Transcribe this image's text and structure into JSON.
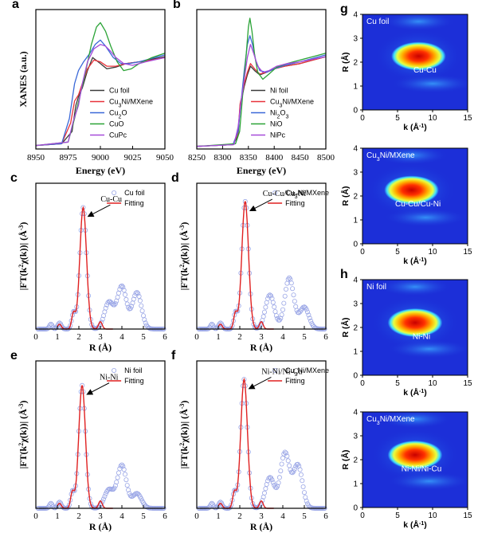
{
  "figure": {
    "panel_labels": [
      "a",
      "b",
      "c",
      "d",
      "e",
      "f",
      "g",
      "h"
    ],
    "colors": {
      "black": "#3a3a3a",
      "red": "#e8323a",
      "blue": "#3a68d8",
      "green": "#2aa336",
      "purple": "#a64bd9",
      "fit_red": "#e02020",
      "circle": "#9aa6e6",
      "wt_bg": "#1c2fd8"
    }
  },
  "chart_data": [
    {
      "id": "a",
      "type": "line",
      "panel": "a",
      "xlabel": "Energy (eV)",
      "ylabel": "XANES (a.u.)",
      "xlim": [
        8950,
        9050
      ],
      "ylim": [
        0,
        1.6
      ],
      "xticks": [
        "8950",
        "8975",
        "9000",
        "9025",
        "9050"
      ],
      "legend": [
        "Cu foil",
        "Cu3Ni/MXene",
        "Cu2O",
        "CuO",
        "CuPc"
      ],
      "legend_sub": [
        [
          "Cu foil"
        ],
        [
          "Cu",
          "3",
          "Ni/MXene"
        ],
        [
          "Cu",
          "2",
          "O"
        ],
        [
          "CuO"
        ],
        [
          "CuPc"
        ]
      ],
      "series": [
        {
          "name": "Cu foil",
          "color": "#3a3a3a",
          "x": [
            8950,
            8970,
            8978,
            8981,
            8983,
            8986,
            8990,
            8994,
            9000,
            9005,
            9012,
            9020,
            9030,
            9040,
            9050
          ],
          "y": [
            0.04,
            0.06,
            0.2,
            0.5,
            0.6,
            0.7,
            0.9,
            1.05,
            0.98,
            0.92,
            0.94,
            0.98,
            1.0,
            1.03,
            1.06
          ]
        },
        {
          "name": "Cu3Ni/MXene",
          "color": "#e8323a",
          "x": [
            8950,
            8970,
            8977,
            8980,
            8983,
            8986,
            8990,
            8995,
            9000,
            9005,
            9012,
            9020,
            9030,
            9040,
            9050
          ],
          "y": [
            0.04,
            0.06,
            0.3,
            0.55,
            0.62,
            0.75,
            0.92,
            1.02,
            1.0,
            0.95,
            0.95,
            0.98,
            1.0,
            1.02,
            1.05
          ]
        },
        {
          "name": "Cu2O",
          "color": "#3a68d8",
          "x": [
            8950,
            8970,
            8976,
            8980,
            8983,
            8987,
            8992,
            8996,
            9000,
            9004,
            9010,
            9016,
            9022,
            9030,
            9040,
            9050
          ],
          "y": [
            0.04,
            0.06,
            0.35,
            0.75,
            0.9,
            1.0,
            1.1,
            1.2,
            1.25,
            1.18,
            1.05,
            0.98,
            0.98,
            1.0,
            1.04,
            1.08
          ]
        },
        {
          "name": "CuO",
          "color": "#2aa336",
          "x": [
            8950,
            8975,
            8980,
            8984,
            8988,
            8993,
            8997,
            9000,
            9004,
            9008,
            9013,
            9018,
            9024,
            9030,
            9040,
            9050
          ],
          "y": [
            0.04,
            0.08,
            0.35,
            0.6,
            0.85,
            1.2,
            1.4,
            1.45,
            1.35,
            1.18,
            1.0,
            0.9,
            0.92,
            0.98,
            1.05,
            1.1
          ]
        },
        {
          "name": "CuPc",
          "color": "#a64bd9",
          "x": [
            8950,
            8975,
            8979,
            8983,
            8986,
            8990,
            8995,
            9000,
            9004,
            9008,
            9012,
            9018,
            9025,
            9035,
            9050
          ],
          "y": [
            0.04,
            0.08,
            0.32,
            0.5,
            0.75,
            1.0,
            1.15,
            1.2,
            1.18,
            1.12,
            1.05,
            0.98,
            0.96,
            1.0,
            1.05
          ]
        }
      ]
    },
    {
      "id": "b",
      "type": "line",
      "panel": "b",
      "xlabel": "Energy (eV)",
      "ylabel": "",
      "xlim": [
        8250,
        8500
      ],
      "ylim": [
        0,
        1.6
      ],
      "xticks": [
        "8250",
        "8300",
        "8350",
        "8400",
        "8450",
        "8500"
      ],
      "legend": [
        "Ni foil",
        "Cu3Ni/MXene",
        "Ni2O3",
        "NiO",
        "NiPc"
      ],
      "legend_sub": [
        [
          "Ni foil"
        ],
        [
          "Cu",
          "3",
          "Ni/MXene"
        ],
        [
          "Ni",
          "2",
          "O",
          "3"
        ],
        [
          "NiO"
        ],
        [
          "NiPc"
        ]
      ],
      "series": [
        {
          "name": "Ni foil",
          "color": "#3a3a3a",
          "x": [
            8250,
            8320,
            8330,
            8334,
            8338,
            8342,
            8348,
            8354,
            8362,
            8372,
            8385,
            8400,
            8420,
            8450,
            8475,
            8500
          ],
          "y": [
            0.03,
            0.05,
            0.15,
            0.5,
            0.6,
            0.72,
            0.85,
            0.95,
            0.9,
            0.85,
            0.88,
            0.92,
            0.95,
            0.98,
            1.02,
            1.06
          ]
        },
        {
          "name": "Cu3Ni/MXene",
          "color": "#e8323a",
          "x": [
            8250,
            8320,
            8330,
            8334,
            8338,
            8342,
            8348,
            8354,
            8362,
            8372,
            8385,
            8400,
            8420,
            8450,
            8475,
            8500
          ],
          "y": [
            0.03,
            0.05,
            0.18,
            0.52,
            0.62,
            0.75,
            0.88,
            0.98,
            0.92,
            0.86,
            0.88,
            0.92,
            0.95,
            0.98,
            1.02,
            1.06
          ]
        },
        {
          "name": "Ni2O3",
          "color": "#3a68d8",
          "x": [
            8250,
            8320,
            8330,
            8336,
            8342,
            8348,
            8353,
            8358,
            8364,
            8372,
            8385,
            8400,
            8420,
            8450,
            8475,
            8500
          ],
          "y": [
            0.03,
            0.05,
            0.2,
            0.55,
            0.9,
            1.2,
            1.3,
            1.2,
            1.02,
            0.9,
            0.88,
            0.92,
            0.96,
            1.0,
            1.04,
            1.08
          ]
        },
        {
          "name": "NiO",
          "color": "#2aa336",
          "x": [
            8250,
            8325,
            8333,
            8340,
            8346,
            8350,
            8353,
            8357,
            8362,
            8368,
            8378,
            8390,
            8405,
            8425,
            8450,
            8475,
            8500
          ],
          "y": [
            0.03,
            0.06,
            0.2,
            0.7,
            1.1,
            1.4,
            1.5,
            1.35,
            1.08,
            0.88,
            0.8,
            0.86,
            0.94,
            0.98,
            1.02,
            1.06,
            1.1
          ]
        },
        {
          "name": "NiPc",
          "color": "#a64bd9",
          "x": [
            8250,
            8322,
            8330,
            8336,
            8342,
            8348,
            8354,
            8360,
            8368,
            8378,
            8390,
            8405,
            8425,
            8450,
            8475,
            8500
          ],
          "y": [
            0.03,
            0.05,
            0.25,
            0.55,
            0.8,
            1.05,
            1.2,
            1.1,
            0.95,
            0.88,
            0.9,
            0.95,
            0.98,
            1.0,
            1.03,
            1.06
          ]
        }
      ]
    },
    {
      "id": "c",
      "type": "line",
      "panel": "c",
      "xlabel": "R (Å)",
      "ylabel": "|FT(k²χ(k))| (Å⁻³)",
      "xlim": [
        0,
        6
      ],
      "ylim": [
        0,
        1.2
      ],
      "xticks": [
        "0",
        "1",
        "2",
        "3",
        "4",
        "5",
        "6"
      ],
      "legend": [
        "Cu foil",
        "Fitting"
      ],
      "legend_sub": [
        [
          "Cu foil"
        ],
        [
          "Fitting"
        ]
      ],
      "annotation": "Cu-Cu",
      "peak": 2.2,
      "peak_h": 1.0,
      "secondary_peaks": [
        [
          3.4,
          0.22
        ],
        [
          4.0,
          0.35
        ],
        [
          4.7,
          0.3
        ]
      ]
    },
    {
      "id": "d",
      "type": "line",
      "panel": "d",
      "xlabel": "R (Å)",
      "ylabel": "|FT(k²χ(k))| (Å⁻³)",
      "xlim": [
        0,
        6
      ],
      "ylim": [
        0,
        1.2
      ],
      "xticks": [
        "0",
        "1",
        "2",
        "3",
        "4",
        "5",
        "6"
      ],
      "legend": [
        "Cu3Ni/MXene",
        "Fitting"
      ],
      "legend_sub": [
        [
          "Cu",
          "3",
          "Ni/MXene"
        ],
        [
          "Fitting"
        ]
      ],
      "annotation": "Cu-Cu/Cu-Ni",
      "peak": 2.25,
      "peak_h": 1.05,
      "secondary_peaks": [
        [
          3.4,
          0.28
        ],
        [
          4.3,
          0.42
        ],
        [
          5.0,
          0.18
        ]
      ]
    },
    {
      "id": "e",
      "type": "line",
      "panel": "e",
      "xlabel": "R (Å)",
      "ylabel": "|FT(k²χ(k))| (Å⁻³)",
      "xlim": [
        0,
        6
      ],
      "ylim": [
        0,
        1.2
      ],
      "xticks": [
        "0",
        "1",
        "2",
        "3",
        "4",
        "5",
        "6"
      ],
      "legend": [
        "Ni foil",
        "Fitting"
      ],
      "legend_sub": [
        [
          "Ni foil"
        ],
        [
          "Fitting"
        ]
      ],
      "annotation": "Ni-Ni",
      "peak": 2.15,
      "peak_h": 1.0,
      "secondary_peaks": [
        [
          3.4,
          0.15
        ],
        [
          4.0,
          0.35
        ],
        [
          4.7,
          0.12
        ]
      ]
    },
    {
      "id": "f",
      "type": "line",
      "panel": "f",
      "xlabel": "R (Å)",
      "ylabel": "|FT(k²χ(k))| (Å⁻³)",
      "xlim": [
        0,
        6
      ],
      "ylim": [
        0,
        1.2
      ],
      "xticks": [
        "0",
        "1",
        "2",
        "3",
        "4",
        "5",
        "6"
      ],
      "legend": [
        "Cu3Ni/MXene",
        "Fitting"
      ],
      "legend_sub": [
        [
          "Cu",
          "3",
          "Ni/MXene"
        ],
        [
          "Fitting"
        ]
      ],
      "annotation": "Ni-Ni/Ni-Cu",
      "peak": 2.2,
      "peak_h": 1.05,
      "secondary_peaks": [
        [
          3.4,
          0.25
        ],
        [
          4.1,
          0.45
        ],
        [
          4.7,
          0.35
        ]
      ]
    },
    {
      "id": "g1",
      "type": "heatmap",
      "panel": "g",
      "title": "Cu foil",
      "feature": "Cu-Cu",
      "xlabel": "k (Å⁻¹)",
      "ylabel": "R (Å)",
      "xlim": [
        0,
        15
      ],
      "ylim": [
        0,
        4
      ],
      "xticks": [
        "0",
        "5",
        "10",
        "15"
      ],
      "yticks": [
        "0",
        "1",
        "2",
        "3",
        "4"
      ],
      "hotspot": {
        "k": 8.0,
        "R": 2.25
      }
    },
    {
      "id": "g2",
      "type": "heatmap",
      "panel": "",
      "title": "Cu3Ni/MXene",
      "title_sub": [
        "Cu",
        "3",
        "Ni/MXene"
      ],
      "feature": "Cu-Cu/Cu-Ni",
      "xlabel": "k (Å⁻¹)",
      "ylabel": "R (Å)",
      "xlim": [
        0,
        15
      ],
      "ylim": [
        0,
        4
      ],
      "xticks": [
        "0",
        "5",
        "10",
        "15"
      ],
      "yticks": [
        "0",
        "1",
        "2",
        "3",
        "4"
      ],
      "hotspot": {
        "k": 7.0,
        "R": 2.25
      }
    },
    {
      "id": "h1",
      "type": "heatmap",
      "panel": "h",
      "title": "Ni foil",
      "feature": "Ni-Ni",
      "xlabel": "k (Å⁻¹)",
      "ylabel": "R (Å)",
      "xlim": [
        0,
        15
      ],
      "ylim": [
        0,
        4
      ],
      "xticks": [
        "0",
        "5",
        "10",
        "15"
      ],
      "yticks": [
        "0",
        "1",
        "2",
        "3",
        "4"
      ],
      "hotspot": {
        "k": 7.5,
        "R": 2.2
      }
    },
    {
      "id": "h2",
      "type": "heatmap",
      "panel": "",
      "title": "Cu3Ni/MXene",
      "title_sub": [
        "Cu",
        "3",
        "Ni/MXene"
      ],
      "feature": "Ni-Ni/Ni-Cu",
      "xlabel": "k (Å⁻¹)",
      "ylabel": "R (Å)",
      "xlim": [
        0,
        15
      ],
      "ylim": [
        0,
        4
      ],
      "xticks": [
        "0",
        "5",
        "10",
        "15"
      ],
      "yticks": [
        "0",
        "1",
        "2",
        "3",
        "4"
      ],
      "hotspot": {
        "k": 7.5,
        "R": 2.2
      }
    }
  ]
}
